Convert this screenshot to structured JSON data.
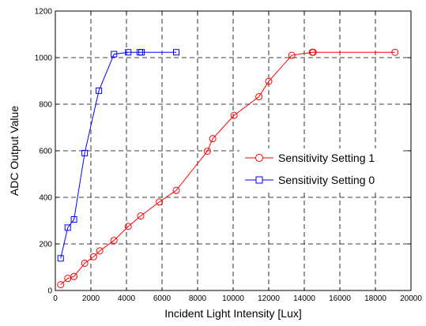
{
  "chart_data": {
    "type": "line",
    "xlabel": "Incident Light Intensity [Lux]",
    "ylabel": "ADC Output Value",
    "xlim": [
      0,
      20000
    ],
    "ylim": [
      0,
      1200
    ],
    "xticks": [
      0,
      2000,
      4000,
      6000,
      8000,
      10000,
      12000,
      14000,
      16000,
      18000,
      20000
    ],
    "yticks": [
      0,
      200,
      400,
      600,
      800,
      1000,
      1200
    ],
    "xtick_labels": [
      "0",
      "2000",
      "4000",
      "6000",
      "8000",
      "10000",
      "12000",
      "14000",
      "16000",
      "18000",
      "20000"
    ],
    "ytick_labels": [
      "0",
      "200",
      "400",
      "600",
      "800",
      "1000",
      "1200"
    ],
    "grid": true,
    "grid_style": "dashed",
    "legend_position": "center-right",
    "series": [
      {
        "name": "Sensitivity Setting 1",
        "color": "#ff0000",
        "marker": "circle",
        "x": [
          300,
          700,
          1050,
          1650,
          2150,
          2500,
          3300,
          4100,
          4800,
          5850,
          6800,
          8550,
          8850,
          10050,
          11450,
          12000,
          13300,
          14450,
          14500,
          19100
        ],
        "y": [
          25,
          52,
          60,
          117,
          145,
          170,
          215,
          275,
          320,
          380,
          430,
          598,
          652,
          752,
          832,
          898,
          1010,
          1023,
          1023,
          1023
        ]
      },
      {
        "name": "Sensitivity Setting 0",
        "color": "#0000ff",
        "marker": "square",
        "x": [
          300,
          700,
          1050,
          1650,
          2450,
          3300,
          4100,
          4750,
          4850,
          6800
        ],
        "y": [
          138,
          270,
          305,
          590,
          858,
          1015,
          1023,
          1023,
          1023,
          1023
        ]
      }
    ]
  }
}
